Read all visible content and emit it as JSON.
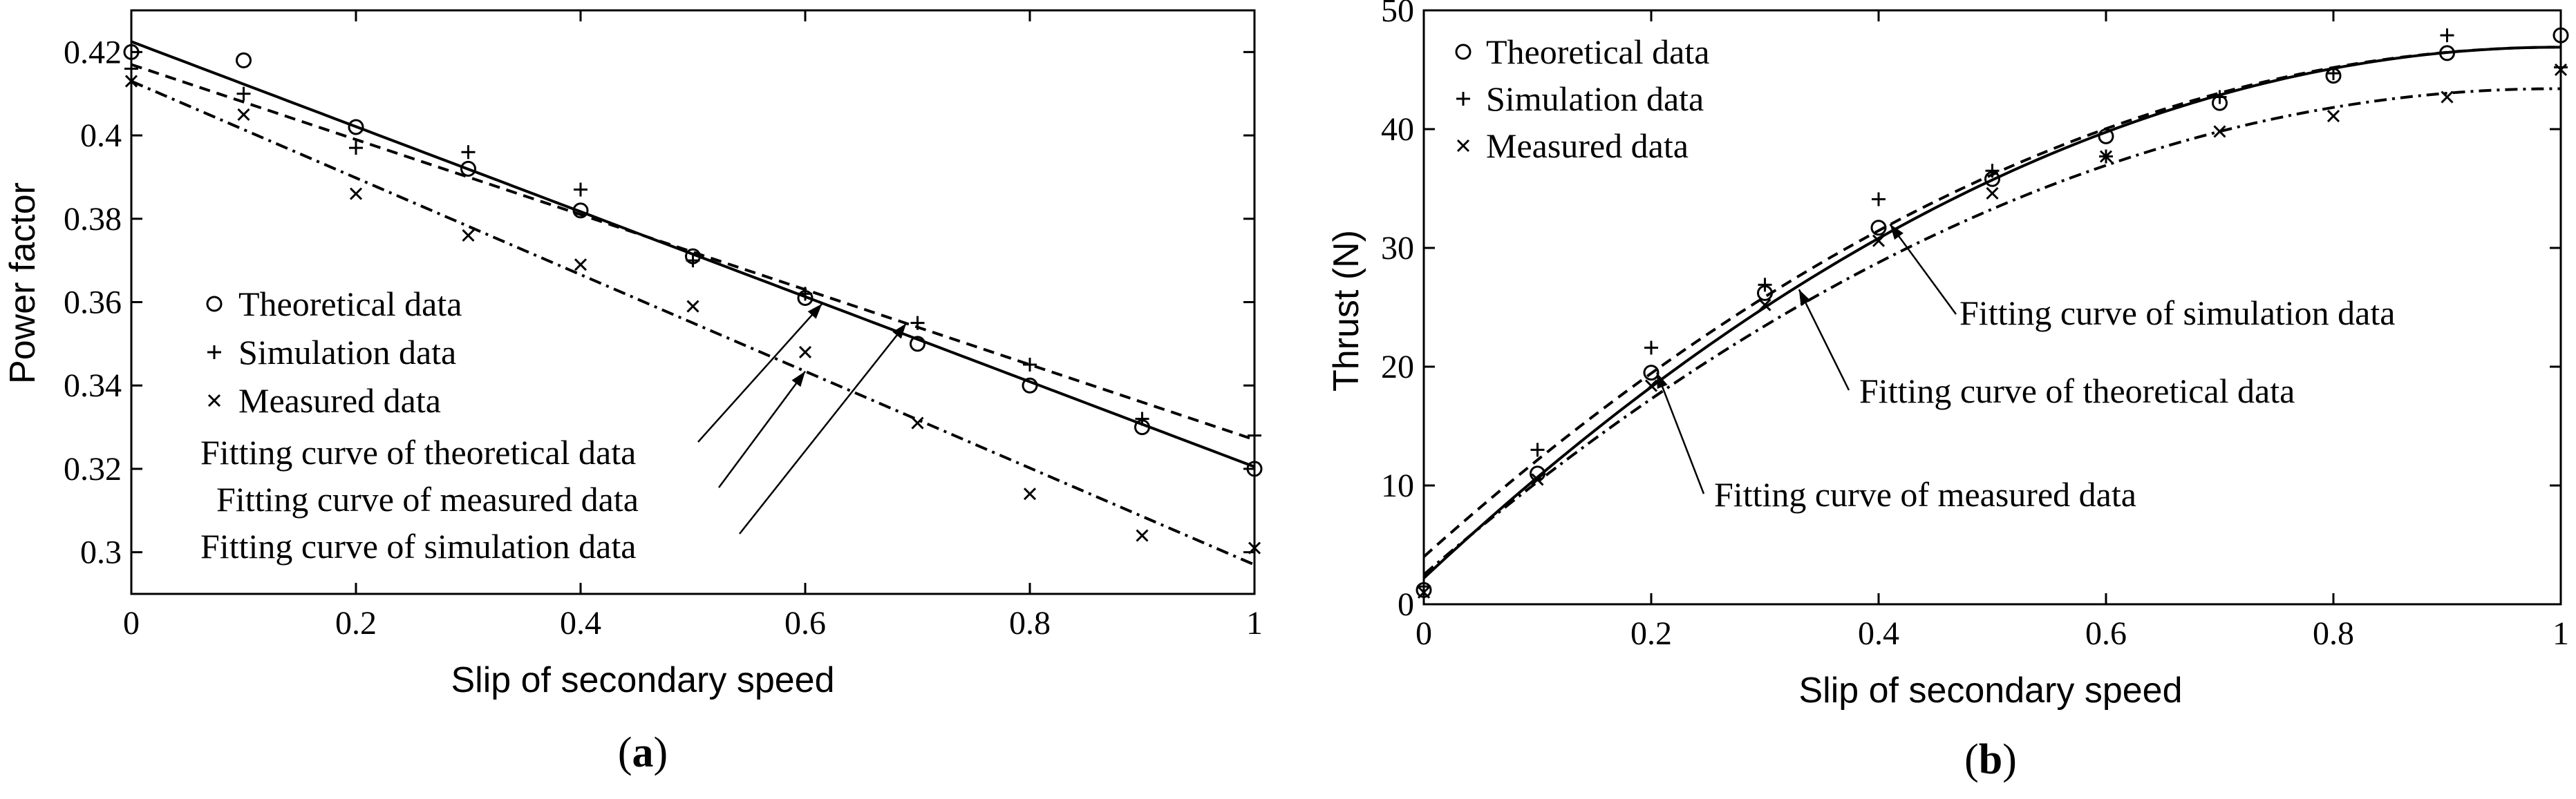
{
  "chart_data": [
    {
      "type": "scatter",
      "panel_label": "a",
      "xlabel": "Slip of secondary speed",
      "ylabel": "Power factor",
      "xlim": [
        0,
        1
      ],
      "ylim": [
        0.29,
        0.43
      ],
      "x_ticks": [
        0,
        0.2,
        0.4,
        0.6,
        0.8,
        1
      ],
      "x_tick_labels": [
        "0",
        "0.2",
        "0.4",
        "0.6",
        "0.8",
        "1"
      ],
      "y_ticks": [
        0.3,
        0.32,
        0.34,
        0.36,
        0.38,
        0.4,
        0.42
      ],
      "y_tick_labels": [
        "0.3",
        "0.32",
        "0.34",
        "0.36",
        "0.38",
        "0.4",
        "0.42"
      ],
      "grid": false,
      "legend_position": "center-left",
      "x": [
        0,
        0.1,
        0.2,
        0.3,
        0.4,
        0.5,
        0.6,
        0.7,
        0.8,
        0.9,
        1.0
      ],
      "series": [
        {
          "name": "Theoretical data",
          "marker": "circle",
          "values": [
            0.42,
            0.418,
            0.402,
            0.392,
            0.382,
            0.371,
            0.361,
            0.35,
            0.34,
            0.33,
            0.32
          ]
        },
        {
          "name": "Simulation data",
          "marker": "plus",
          "values": [
            0.416,
            0.41,
            0.397,
            0.396,
            0.387,
            0.37,
            0.362,
            0.355,
            0.345,
            0.332,
            0.328
          ]
        },
        {
          "name": "Measured data",
          "marker": "x",
          "values": [
            0.413,
            0.405,
            0.386,
            0.376,
            0.369,
            0.359,
            0.348,
            0.331,
            0.314,
            0.304,
            0.301
          ]
        }
      ],
      "fits": [
        {
          "name": "Fitting curve of theoretical data",
          "style": "solid",
          "coeffs": [
            0.4225,
            -0.102,
            0
          ]
        },
        {
          "name": "Fitting curve of simulation data",
          "style": "dashed",
          "coeffs": [
            0.417,
            -0.09,
            0
          ]
        },
        {
          "name": "Fitting curve of measured data",
          "style": "dashdot",
          "coeffs": [
            0.413,
            -0.116,
            0
          ]
        }
      ],
      "annotations": [
        {
          "text": "Fitting curve of theoretical data",
          "target": [
            0.615,
            0.3596
          ]
        },
        {
          "text": "Fitting curve of measured data",
          "target": [
            0.6,
            0.3434
          ]
        },
        {
          "text": "Fitting curve of simulation data",
          "target": [
            0.69,
            0.3549
          ]
        }
      ]
    },
    {
      "type": "scatter",
      "panel_label": "b",
      "xlabel": "Slip of secondary speed",
      "ylabel": "Thrust (N)",
      "xlim": [
        0,
        1
      ],
      "ylim": [
        0,
        50
      ],
      "x_ticks": [
        0,
        0.2,
        0.4,
        0.6,
        0.8,
        1
      ],
      "x_tick_labels": [
        "0",
        "0.2",
        "0.4",
        "0.6",
        "0.8",
        "1"
      ],
      "y_ticks": [
        0,
        10,
        20,
        30,
        40,
        50
      ],
      "y_tick_labels": [
        "0",
        "10",
        "20",
        "30",
        "40",
        "50"
      ],
      "grid": false,
      "legend_position": "top-left",
      "x": [
        0,
        0.1,
        0.2,
        0.3,
        0.4,
        0.5,
        0.6,
        0.7,
        0.8,
        0.9,
        1.0
      ],
      "series": [
        {
          "name": "Theoretical data",
          "marker": "circle",
          "values": [
            1.2,
            11.0,
            19.5,
            26.2,
            31.7,
            35.8,
            39.4,
            42.2,
            44.5,
            46.4,
            47.9
          ]
        },
        {
          "name": "Simulation data",
          "marker": "plus",
          "values": [
            1.5,
            13.0,
            21.6,
            26.9,
            34.1,
            36.5,
            37.7,
            42.7,
            44.7,
            47.9,
            45.2
          ]
        },
        {
          "name": "Measured data",
          "marker": "x",
          "values": [
            1.0,
            10.5,
            18.4,
            25.2,
            30.6,
            34.6,
            37.7,
            39.8,
            41.1,
            42.7,
            45.0
          ]
        }
      ],
      "fits": [
        {
          "name": "Fitting curve of theoretical data",
          "style": "solid",
          "coeffs": [
            2.2,
            89.4,
            -44.7
          ]
        },
        {
          "name": "Fitting curve of simulation data",
          "style": "dashed",
          "coeffs": [
            4.0,
            85.8,
            -42.9
          ]
        },
        {
          "name": "Fitting curve of measured data",
          "style": "dashdot",
          "coeffs": [
            2.5,
            82.2,
            -41.3
          ]
        }
      ],
      "annotations": [
        {
          "text": "Fitting curve of simulation data",
          "target": [
            0.41,
            32.0
          ]
        },
        {
          "text": "Fitting curve of theoretical data",
          "target": [
            0.33,
            26.5
          ]
        },
        {
          "text": "Fitting curve of measured data",
          "target": [
            0.205,
            19.5
          ]
        }
      ]
    }
  ]
}
